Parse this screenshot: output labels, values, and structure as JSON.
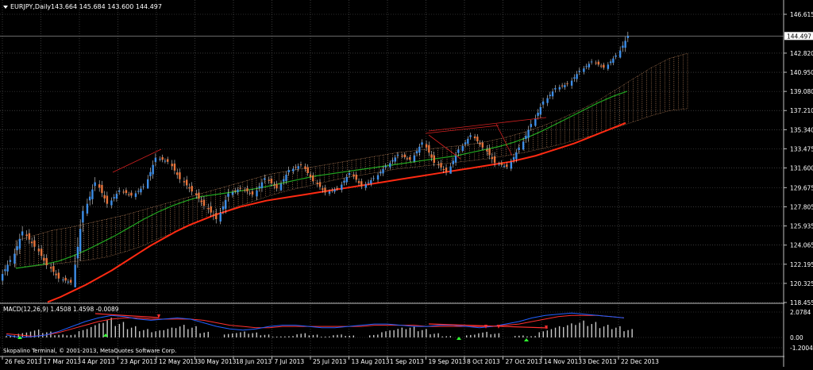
{
  "header": {
    "symbol_label": "EURJPY,Daily",
    "ohlc": "143.664 145.684 143.600 144.497"
  },
  "macd_header": {
    "label": "MACD(12,26,9) 1.4508 1.4598 -0.0089"
  },
  "copyright": "Skopalino Terminal, © 2001-2013, MetaQuotes Software Corp.",
  "colors": {
    "background": "#000000",
    "grid": "#5a5a5a",
    "bull_candle": "#3d8ee8",
    "bear_candle": "#e8743b",
    "ma_slow": "#ff2a12",
    "ma_fast": "#21a821",
    "cloud": "#d99a6c",
    "macd_line": "#2060ff",
    "signal_line": "#ff3030",
    "histogram": "#c8c8c8",
    "arrow_up": "#30ff30",
    "arrow_down": "#ff3030",
    "axis_text": "#ffffff"
  },
  "chart_data": [
    {
      "type": "candlestick",
      "title": "EURJPY,Daily",
      "x_tick_labels": [
        "26 Feb 2013",
        "17 Mar 2013",
        "4 Apr 2013",
        "23 Apr 2013",
        "12 May 2013",
        "30 May 2013",
        "18 Jun 2013",
        "7 Jul 2013",
        "25 Jul 2013",
        "13 Aug 2013",
        "1 Sep 2013",
        "19 Sep 2013",
        "8 Oct 2013",
        "27 Oct 2013",
        "14 Nov 2013",
        "3 Dec 2013",
        "22 Dec 2013"
      ],
      "y_tick_labels": [
        "146.615",
        "142.820",
        "140.950",
        "139.080",
        "137.210",
        "135.340",
        "133.475",
        "131.600",
        "129.675",
        "127.805",
        "125.935",
        "124.065",
        "122.195",
        "120.325",
        "118.455"
      ],
      "ylim": [
        118.455,
        146.615
      ],
      "last_price_label": "144.497",
      "grid": true,
      "candles": [
        {
          "date": "26 Feb 2013",
          "open": 120.8,
          "high": 123.4,
          "low": 119.9,
          "close": 122.6
        },
        {
          "date": "6 Mar 2013",
          "open": 122.5,
          "high": 126.1,
          "low": 121.9,
          "close": 125.4
        },
        {
          "date": "13 Mar 2013",
          "open": 125.3,
          "high": 126.2,
          "low": 122.8,
          "close": 123.9
        },
        {
          "date": "17 Mar 2013",
          "open": 123.9,
          "high": 124.3,
          "low": 121.2,
          "close": 122.1
        },
        {
          "date": "24 Mar 2013",
          "open": 122.1,
          "high": 123.1,
          "low": 120.1,
          "close": 120.8
        },
        {
          "date": "31 Mar 2013",
          "open": 120.8,
          "high": 121.7,
          "low": 119.6,
          "close": 120.4
        },
        {
          "date": "4 Apr 2013",
          "open": 120.4,
          "high": 127.9,
          "low": 120.2,
          "close": 127.4
        },
        {
          "date": "8 Apr 2013",
          "open": 127.4,
          "high": 131.1,
          "low": 126.9,
          "close": 130.2
        },
        {
          "date": "15 Apr 2013",
          "open": 130.2,
          "high": 130.6,
          "low": 127.3,
          "close": 128.1
        },
        {
          "date": "19 Apr 2013",
          "open": 128.1,
          "high": 130.1,
          "low": 127.6,
          "close": 129.4
        },
        {
          "date": "23 Apr 2013",
          "open": 129.4,
          "high": 130.3,
          "low": 128.3,
          "close": 128.9
        },
        {
          "date": "29 Apr 2013",
          "open": 128.9,
          "high": 130.5,
          "low": 128.3,
          "close": 129.8
        },
        {
          "date": "6 May 2013",
          "open": 129.8,
          "high": 133.2,
          "low": 129.6,
          "close": 132.6
        },
        {
          "date": "12 May 2013",
          "open": 132.6,
          "high": 133.6,
          "low": 131.6,
          "close": 132.2
        },
        {
          "date": "19 May 2013",
          "open": 132.2,
          "high": 132.8,
          "low": 129.7,
          "close": 130.5
        },
        {
          "date": "26 May 2013",
          "open": 130.5,
          "high": 131.2,
          "low": 128.1,
          "close": 129.3
        },
        {
          "date": "30 May 2013",
          "open": 129.3,
          "high": 130.1,
          "low": 127.1,
          "close": 127.9
        },
        {
          "date": "5 Jun 2013",
          "open": 127.9,
          "high": 129.2,
          "low": 125.7,
          "close": 126.6
        },
        {
          "date": "12 Jun 2013",
          "open": 126.6,
          "high": 130.0,
          "low": 126.1,
          "close": 129.1
        },
        {
          "date": "18 Jun 2013",
          "open": 129.1,
          "high": 130.3,
          "low": 128.1,
          "close": 129.6
        },
        {
          "date": "25 Jun 2013",
          "open": 129.6,
          "high": 130.7,
          "low": 128.6,
          "close": 129.0
        },
        {
          "date": "1 Jul 2013",
          "open": 129.0,
          "high": 131.2,
          "low": 128.2,
          "close": 130.6
        },
        {
          "date": "7 Jul 2013",
          "open": 130.6,
          "high": 131.6,
          "low": 129.1,
          "close": 129.6
        },
        {
          "date": "14 Jul 2013",
          "open": 129.6,
          "high": 132.1,
          "low": 129.3,
          "close": 131.4
        },
        {
          "date": "20 Jul 2013",
          "open": 131.4,
          "high": 132.8,
          "low": 130.6,
          "close": 131.9
        },
        {
          "date": "25 Jul 2013",
          "open": 131.9,
          "high": 132.2,
          "low": 129.9,
          "close": 130.3
        },
        {
          "date": "31 Jul 2013",
          "open": 130.3,
          "high": 131.0,
          "low": 128.6,
          "close": 129.2
        },
        {
          "date": "6 Aug 2013",
          "open": 129.2,
          "high": 130.1,
          "low": 128.3,
          "close": 129.6
        },
        {
          "date": "13 Aug 2013",
          "open": 129.6,
          "high": 131.6,
          "low": 129.2,
          "close": 131.1
        },
        {
          "date": "19 Aug 2013",
          "open": 131.1,
          "high": 131.4,
          "low": 129.2,
          "close": 129.8
        },
        {
          "date": "25 Aug 2013",
          "open": 129.8,
          "high": 131.1,
          "low": 128.9,
          "close": 130.6
        },
        {
          "date": "1 Sep 2013",
          "open": 130.6,
          "high": 132.3,
          "low": 130.1,
          "close": 131.8
        },
        {
          "date": "8 Sep 2013",
          "open": 131.8,
          "high": 133.4,
          "low": 131.3,
          "close": 132.9
        },
        {
          "date": "15 Sep 2013",
          "open": 132.9,
          "high": 133.6,
          "low": 131.9,
          "close": 132.4
        },
        {
          "date": "19 Sep 2013",
          "open": 132.4,
          "high": 134.6,
          "low": 132.1,
          "close": 134.1
        },
        {
          "date": "26 Sep 2013",
          "open": 134.1,
          "high": 134.5,
          "low": 131.6,
          "close": 132.1
        },
        {
          "date": "2 Oct 2013",
          "open": 132.1,
          "high": 133.3,
          "low": 130.6,
          "close": 131.2
        },
        {
          "date": "8 Oct 2013",
          "open": 131.2,
          "high": 133.8,
          "low": 131.1,
          "close": 133.4
        },
        {
          "date": "14 Oct 2013",
          "open": 133.4,
          "high": 135.2,
          "low": 133.1,
          "close": 134.8
        },
        {
          "date": "21 Oct 2013",
          "open": 134.8,
          "high": 135.1,
          "low": 133.1,
          "close": 133.6
        },
        {
          "date": "27 Oct 2013",
          "open": 133.6,
          "high": 134.7,
          "low": 131.3,
          "close": 132.1
        },
        {
          "date": "3 Nov 2013",
          "open": 132.1,
          "high": 132.7,
          "low": 130.9,
          "close": 131.7
        },
        {
          "date": "9 Nov 2013",
          "open": 131.7,
          "high": 134.1,
          "low": 131.3,
          "close": 133.6
        },
        {
          "date": "14 Nov 2013",
          "open": 133.6,
          "high": 136.6,
          "low": 133.3,
          "close": 135.9
        },
        {
          "date": "19 Nov 2013",
          "open": 135.9,
          "high": 138.6,
          "low": 135.6,
          "close": 138.1
        },
        {
          "date": "25 Nov 2013",
          "open": 138.1,
          "high": 140.1,
          "low": 137.6,
          "close": 139.4
        },
        {
          "date": "30 Nov 2013",
          "open": 139.4,
          "high": 140.3,
          "low": 138.3,
          "close": 139.8
        },
        {
          "date": "3 Dec 2013",
          "open": 139.8,
          "high": 141.7,
          "low": 139.1,
          "close": 141.1
        },
        {
          "date": "9 Dec 2013",
          "open": 141.1,
          "high": 142.6,
          "low": 140.6,
          "close": 142.0
        },
        {
          "date": "14 Dec 2013",
          "open": 142.0,
          "high": 142.6,
          "low": 140.9,
          "close": 141.4
        },
        {
          "date": "18 Dec 2013",
          "open": 141.4,
          "high": 143.1,
          "low": 141.1,
          "close": 142.6
        },
        {
          "date": "22 Dec 2013",
          "open": 142.6,
          "high": 145.7,
          "low": 142.3,
          "close": 144.5
        }
      ],
      "moving_average_slow": [
        118.5,
        119.0,
        119.6,
        120.2,
        120.9,
        121.6,
        122.4,
        123.2,
        124.0,
        124.7,
        125.4,
        126.0,
        126.5,
        127.0,
        127.4,
        127.8,
        128.1,
        128.4,
        128.6,
        128.8,
        129.0,
        129.2,
        129.4,
        129.6,
        129.8,
        130.0,
        130.2,
        130.4,
        130.6,
        130.8,
        131.0,
        131.2,
        131.4,
        131.6,
        131.8,
        132.0,
        132.2,
        132.5,
        132.8,
        133.2,
        133.6,
        134.0,
        134.5,
        135.0,
        135.5,
        136.0
      ],
      "moving_average_fast": [
        121.8,
        122.0,
        122.2,
        122.5,
        123.0,
        123.6,
        124.3,
        125.0,
        125.8,
        126.6,
        127.3,
        127.9,
        128.4,
        128.8,
        129.0,
        129.2,
        129.4,
        129.6,
        129.9,
        130.2,
        130.5,
        130.8,
        131.0,
        131.2,
        131.4,
        131.6,
        131.8,
        132.0,
        132.2,
        132.4,
        132.6,
        132.8,
        133.1,
        133.4,
        133.7,
        134.1,
        134.6,
        135.2,
        135.9,
        136.6,
        137.3,
        138.0,
        138.6,
        139.1
      ],
      "cloud_upper": [
        124.5,
        125.0,
        125.5,
        125.8,
        126.2,
        126.6,
        127.0,
        127.5,
        128.0,
        128.5,
        129.0,
        129.5,
        130.0,
        130.5,
        131.0,
        131.3,
        131.6,
        131.9,
        132.2,
        132.5,
        132.8,
        133.1,
        133.3,
        133.5,
        133.7,
        133.9,
        134.2,
        134.6,
        135.1,
        135.7,
        136.4,
        137.2,
        138.1,
        139.2,
        140.3,
        141.4,
        142.3,
        142.8
      ],
      "cloud_lower": [
        121.8,
        122.0,
        122.2,
        122.4,
        122.6,
        122.9,
        123.4,
        124.0,
        124.8,
        125.5,
        126.3,
        127.0,
        127.7,
        128.3,
        128.9,
        129.4,
        129.8,
        130.2,
        130.6,
        130.9,
        131.2,
        131.5,
        131.7,
        131.9,
        132.1,
        132.3,
        132.5,
        132.8,
        133.1,
        133.5,
        133.9,
        134.4,
        134.9,
        135.5,
        136.1,
        136.7,
        137.2,
        137.4
      ]
    },
    {
      "type": "bar",
      "title": "MACD(12,26,9) 1.4508 1.4598 -0.0089",
      "y_tick_labels": [
        "2.0784",
        "0.00",
        "-1.2004"
      ],
      "ylim": [
        -1.2004,
        2.0784
      ],
      "histogram": [
        -0.2,
        -0.5,
        -0.8,
        -0.6,
        -0.3,
        0.2,
        0.6,
        1.0,
        1.4,
        1.1,
        0.8,
        0.6,
        0.5,
        0.7,
        0.9,
        0.8,
        0.4,
        0.0,
        -0.4,
        -0.6,
        -0.5,
        -0.3,
        -0.1,
        0.1,
        0.3,
        0.2,
        -0.1,
        -0.3,
        -0.2,
        0.0,
        0.2,
        0.5,
        0.7,
        0.8,
        0.6,
        0.3,
        0.1,
        0.0,
        0.2,
        0.4,
        0.3,
        0.0,
        -0.2,
        0.1,
        0.5,
        0.8,
        1.0,
        1.2,
        1.1,
        0.9,
        0.8,
        0.6
      ],
      "macd_line": [
        0.2,
        0.0,
        -0.1,
        0.2,
        0.5,
        0.9,
        1.3,
        1.6,
        1.8,
        1.7,
        1.5,
        1.4,
        1.5,
        1.6,
        1.5,
        1.2,
        0.9,
        0.7,
        0.6,
        0.7,
        0.9,
        1.0,
        1.0,
        0.9,
        0.8,
        0.8,
        0.9,
        1.0,
        1.1,
        1.1,
        1.0,
        0.9,
        0.9,
        1.0,
        1.0,
        0.9,
        0.8,
        0.9,
        1.1,
        1.3,
        1.6,
        1.8,
        1.9,
        2.0,
        1.9,
        1.8,
        1.7,
        1.6
      ],
      "signal_line": [
        0.3,
        0.2,
        0.1,
        0.2,
        0.4,
        0.7,
        1.0,
        1.3,
        1.5,
        1.6,
        1.6,
        1.5,
        1.5,
        1.5,
        1.5,
        1.4,
        1.2,
        1.0,
        0.9,
        0.8,
        0.8,
        0.9,
        0.9,
        0.9,
        0.9,
        0.9,
        0.9,
        0.9,
        1.0,
        1.0,
        1.0,
        1.0,
        0.9,
        0.9,
        0.9,
        0.9,
        0.9,
        0.9,
        1.0,
        1.1,
        1.3,
        1.5,
        1.7,
        1.8,
        1.8,
        1.8,
        1.7,
        1.6
      ]
    }
  ]
}
